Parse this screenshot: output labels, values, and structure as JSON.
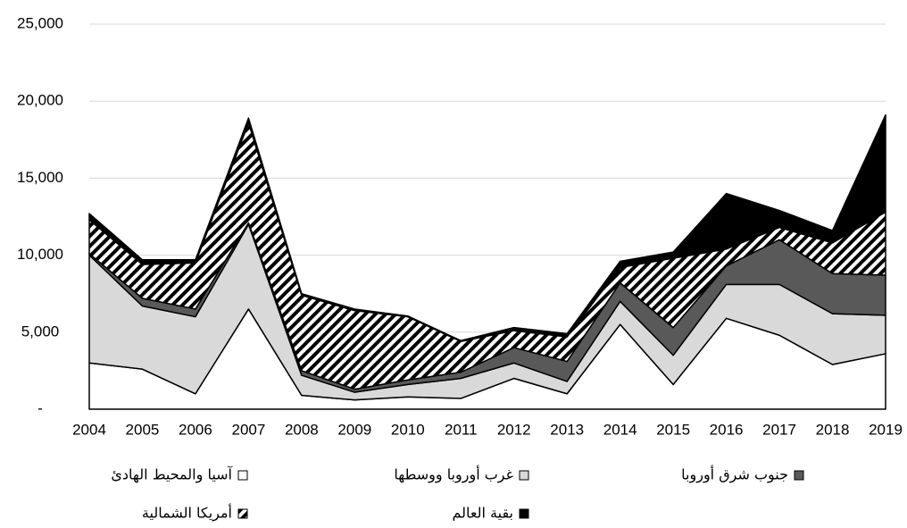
{
  "chart_data": {
    "type": "stacked_area",
    "categories": [
      "2004",
      "2005",
      "2006",
      "2007",
      "2008",
      "2009",
      "2010",
      "2011",
      "2012",
      "2013",
      "2014",
      "2015",
      "2016",
      "2017",
      "2018",
      "2019"
    ],
    "series": [
      {
        "name": "آسيا والمحيط الهادئ",
        "color": "#ffffff",
        "values": [
          3000,
          2600,
          1000,
          6500,
          900,
          600,
          800,
          700,
          2000,
          1000,
          5500,
          1600,
          5900,
          4800,
          2900,
          3600
        ]
      },
      {
        "name": "غرب أوروبا ووسطها",
        "color": "#d9d9d9",
        "values": [
          7000,
          4100,
          5000,
          5500,
          1300,
          500,
          800,
          1300,
          1000,
          800,
          1500,
          1900,
          2200,
          3300,
          3300,
          2500
        ]
      },
      {
        "name": "جنوب شرق أوروبا",
        "color": "#595959",
        "values": [
          100,
          500,
          500,
          100,
          300,
          200,
          300,
          400,
          1000,
          1300,
          1200,
          1800,
          1200,
          2900,
          2600,
          2600
        ]
      },
      {
        "name": "أمريكا الشمالية",
        "color": "hatch",
        "values": [
          2200,
          2200,
          3000,
          6500,
          4900,
          5100,
          4100,
          2000,
          1100,
          1600,
          1000,
          4500,
          1100,
          800,
          2000,
          4100
        ]
      },
      {
        "name": "بقية العالم",
        "color": "#000000",
        "values": [
          400,
          300,
          200,
          300,
          100,
          100,
          50,
          50,
          200,
          200,
          400,
          400,
          3600,
          1100,
          800,
          6300
        ]
      }
    ],
    "ylim": [
      0,
      25000
    ],
    "yticks": [
      {
        "value": 0,
        "label": "-"
      },
      {
        "value": 5000,
        "label": "5,000"
      },
      {
        "value": 10000,
        "label": "10,000"
      },
      {
        "value": 15000,
        "label": "15,000"
      },
      {
        "value": 20000,
        "label": "20,000"
      },
      {
        "value": 25000,
        "label": "25,000"
      }
    ],
    "grid": true
  }
}
